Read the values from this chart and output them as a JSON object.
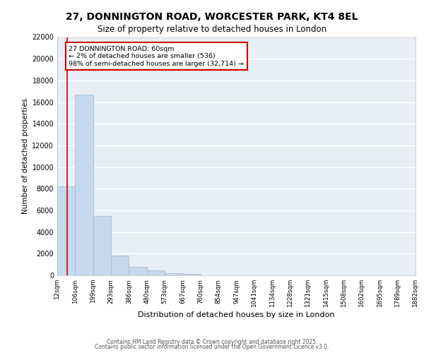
{
  "title1": "27, DONNINGTON ROAD, WORCESTER PARK, KT4 8EL",
  "title2": "Size of property relative to detached houses in London",
  "xlabel": "Distribution of detached houses by size in London",
  "ylabel": "Number of detached properties",
  "bar_values": [
    8200,
    16700,
    5500,
    1800,
    800,
    450,
    200,
    100,
    20,
    0,
    0,
    0,
    0,
    0,
    0,
    0,
    0,
    0,
    0,
    0
  ],
  "x_labels": [
    "12sqm",
    "106sqm",
    "199sqm",
    "293sqm",
    "386sqm",
    "480sqm",
    "573sqm",
    "667sqm",
    "760sqm",
    "854sqm",
    "947sqm",
    "1041sqm",
    "1134sqm",
    "1228sqm",
    "1321sqm",
    "1415sqm",
    "1508sqm",
    "1602sqm",
    "1695sqm",
    "1789sqm",
    "1882sqm"
  ],
  "bar_color": "#c6d9ec",
  "bar_edge_color": "#9ab8d0",
  "background_color": "#e8eef5",
  "grid_color": "#ffffff",
  "annotation_title": "27 DONNINGTON ROAD: 60sqm",
  "annotation_line1": "← 2% of detached houses are smaller (536)",
  "annotation_line2": "98% of semi-detached houses are larger (32,714) →",
  "annotation_box_color": "#ffffff",
  "annotation_border_color": "#cc0000",
  "red_line_color": "#cc0000",
  "ylim": [
    0,
    22000
  ],
  "yticks": [
    0,
    2000,
    4000,
    6000,
    8000,
    10000,
    12000,
    14000,
    16000,
    18000,
    20000,
    22000
  ],
  "footer1": "Contains HM Land Registry data © Crown copyright and database right 2025.",
  "footer2": "Contains public sector information licensed under the Open Government Licence v3.0."
}
